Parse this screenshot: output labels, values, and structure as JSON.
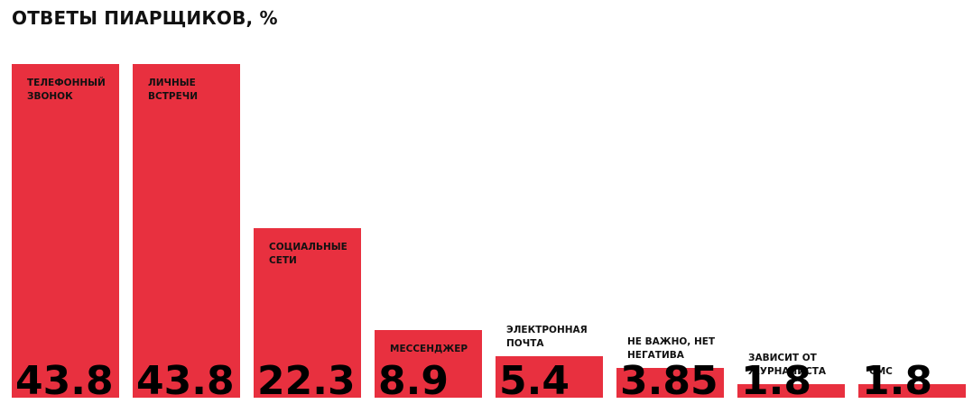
{
  "chart_data": {
    "type": "bar",
    "title": "ОТВЕТЫ ПИАРЩИКОВ, %",
    "categories": [
      "ТЕЛЕФОННЫЙ ЗВОНОК",
      "ЛИЧНЫЕ ВСТРЕЧИ",
      "СОЦИАЛЬНЫЕ СЕТИ",
      "МЕССЕНДЖЕР",
      "ЭЛЕКТРОННАЯ ПОЧТА",
      "НЕ ВАЖНО, НЕТ НЕГАТИВА",
      "ЗАВИСИТ ОТ ЖУРНАЛИСТА",
      "СМС"
    ],
    "values": [
      43.8,
      43.8,
      22.3,
      8.9,
      5.4,
      3.85,
      1.8,
      1.8
    ],
    "color": "#e8303f"
  }
}
